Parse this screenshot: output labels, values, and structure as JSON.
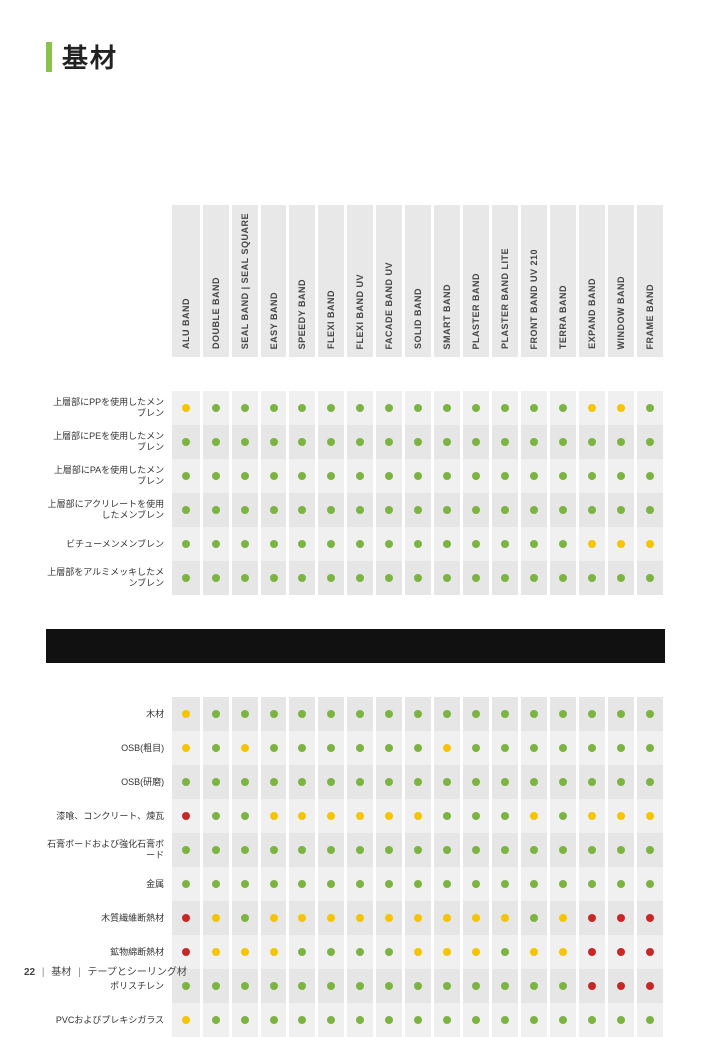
{
  "title": "基材",
  "colors": {
    "green": "#7cb342",
    "yellow": "#f5c400",
    "red": "#c62828",
    "accent": "#8bc34a"
  },
  "columns": [
    "ALU BAND",
    "DOUBLE BAND",
    "SEAL BAND | SEAL SQUARE",
    "EASY BAND",
    "SPEEDY BAND",
    "FLEXI BAND",
    "FLEXI BAND UV",
    "FACADE BAND UV",
    "SOLID BAND",
    "SMART BAND",
    "PLASTER BAND",
    "PLASTER BAND LITE",
    "FRONT BAND UV 210",
    "TERRA BAND",
    "EXPAND BAND",
    "WINDOW BAND",
    "FRAME BAND"
  ],
  "groups": [
    {
      "rows": [
        {
          "label": "上層部にPPを使用したメンブレン",
          "cells": [
            "yellow",
            "green",
            "green",
            "green",
            "green",
            "green",
            "green",
            "green",
            "green",
            "green",
            "green",
            "green",
            "green",
            "green",
            "yellow",
            "yellow",
            "green"
          ]
        },
        {
          "label": "上層部にPEを使用したメンブレン",
          "cells": [
            "green",
            "green",
            "green",
            "green",
            "green",
            "green",
            "green",
            "green",
            "green",
            "green",
            "green",
            "green",
            "green",
            "green",
            "green",
            "green",
            "green"
          ]
        },
        {
          "label": "上層部にPAを使用したメンブレン",
          "cells": [
            "green",
            "green",
            "green",
            "green",
            "green",
            "green",
            "green",
            "green",
            "green",
            "green",
            "green",
            "green",
            "green",
            "green",
            "green",
            "green",
            "green"
          ]
        },
        {
          "label": "上層部にアクリレートを使用したメンブレン",
          "cells": [
            "green",
            "green",
            "green",
            "green",
            "green",
            "green",
            "green",
            "green",
            "green",
            "green",
            "green",
            "green",
            "green",
            "green",
            "green",
            "green",
            "green"
          ]
        },
        {
          "label": "ビチューメンメンブレン",
          "cells": [
            "green",
            "green",
            "green",
            "green",
            "green",
            "green",
            "green",
            "green",
            "green",
            "green",
            "green",
            "green",
            "green",
            "green",
            "yellow",
            "yellow",
            "yellow"
          ]
        },
        {
          "label": "上層部をアルミメッキしたメンブレン",
          "cells": [
            "green",
            "green",
            "green",
            "green",
            "green",
            "green",
            "green",
            "green",
            "green",
            "green",
            "green",
            "green",
            "green",
            "green",
            "green",
            "green",
            "green"
          ]
        }
      ]
    },
    {
      "rows": [
        {
          "label": "木材",
          "cells": [
            "yellow",
            "green",
            "green",
            "green",
            "green",
            "green",
            "green",
            "green",
            "green",
            "green",
            "green",
            "green",
            "green",
            "green",
            "green",
            "green",
            "green"
          ]
        },
        {
          "label": "OSB(粗目)",
          "cells": [
            "yellow",
            "green",
            "yellow",
            "green",
            "green",
            "green",
            "green",
            "green",
            "green",
            "yellow",
            "green",
            "green",
            "green",
            "green",
            "green",
            "green",
            "green"
          ]
        },
        {
          "label": "OSB(研磨)",
          "cells": [
            "green",
            "green",
            "green",
            "green",
            "green",
            "green",
            "green",
            "green",
            "green",
            "green",
            "green",
            "green",
            "green",
            "green",
            "green",
            "green",
            "green"
          ]
        },
        {
          "label": "漆喰、コンクリート、煉瓦",
          "cells": [
            "red",
            "green",
            "green",
            "yellow",
            "yellow",
            "yellow",
            "yellow",
            "yellow",
            "yellow",
            "green",
            "green",
            "green",
            "yellow",
            "green",
            "yellow",
            "yellow",
            "yellow"
          ]
        },
        {
          "label": "石膏ボードおよび強化石膏ボード",
          "cells": [
            "green",
            "green",
            "green",
            "green",
            "green",
            "green",
            "green",
            "green",
            "green",
            "green",
            "green",
            "green",
            "green",
            "green",
            "green",
            "green",
            "green"
          ]
        },
        {
          "label": "金属",
          "cells": [
            "green",
            "green",
            "green",
            "green",
            "green",
            "green",
            "green",
            "green",
            "green",
            "green",
            "green",
            "green",
            "green",
            "green",
            "green",
            "green",
            "green"
          ]
        },
        {
          "label": "木質繊維断熱材",
          "cells": [
            "red",
            "yellow",
            "green",
            "yellow",
            "yellow",
            "yellow",
            "yellow",
            "yellow",
            "yellow",
            "yellow",
            "yellow",
            "yellow",
            "green",
            "yellow",
            "red",
            "red",
            "red"
          ]
        },
        {
          "label": "鉱物綿断熱材",
          "cells": [
            "red",
            "yellow",
            "yellow",
            "yellow",
            "green",
            "green",
            "green",
            "green",
            "yellow",
            "yellow",
            "yellow",
            "green",
            "yellow",
            "yellow",
            "red",
            "red",
            "red"
          ]
        },
        {
          "label": "ポリスチレン",
          "cells": [
            "green",
            "green",
            "green",
            "green",
            "green",
            "green",
            "green",
            "green",
            "green",
            "green",
            "green",
            "green",
            "green",
            "green",
            "red",
            "red",
            "red"
          ]
        },
        {
          "label": "PVCおよびプレキシガラス",
          "cells": [
            "yellow",
            "green",
            "green",
            "green",
            "green",
            "green",
            "green",
            "green",
            "green",
            "green",
            "green",
            "green",
            "green",
            "green",
            "green",
            "green",
            "green"
          ]
        }
      ]
    }
  ],
  "footer": {
    "page": "22",
    "section": "基材",
    "subsection": "テープとシーリング材"
  }
}
